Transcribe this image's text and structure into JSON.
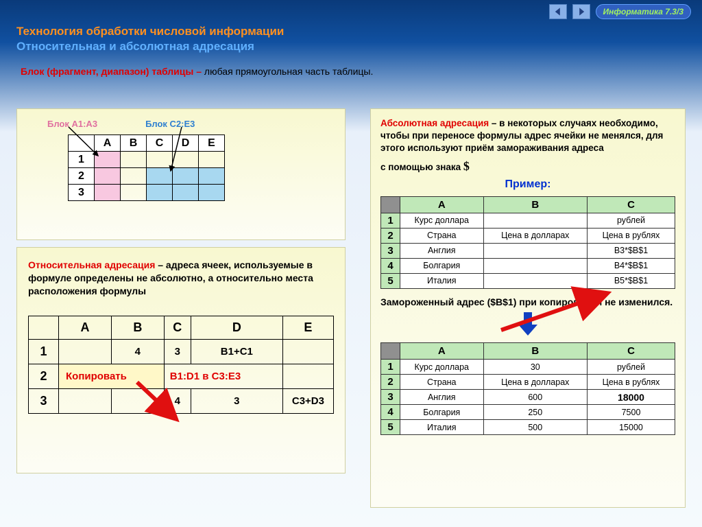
{
  "nav_badge": "Информатика  7.3/3",
  "titles": {
    "t1": "Технология обработки числовой информации",
    "t2": "Относительная и абсолютная адресация"
  },
  "block_def": {
    "term": "Блок (фрагмент, диапазон) таблицы –",
    "rest": " любая прямоугольная часть таблицы."
  },
  "left_top": {
    "label_a": "Блок A1:A3",
    "label_c": "Блок C2:E3",
    "cols": [
      "A",
      "B",
      "C",
      "D",
      "E"
    ],
    "rows": [
      "1",
      "2",
      "3"
    ],
    "pink_cells": [
      [
        0,
        0
      ],
      [
        1,
        0
      ],
      [
        2,
        0
      ]
    ],
    "blue_cells": [
      [
        1,
        2
      ],
      [
        1,
        3
      ],
      [
        1,
        4
      ],
      [
        2,
        2
      ],
      [
        2,
        3
      ],
      [
        2,
        4
      ]
    ]
  },
  "relative_para": {
    "term": "Относительная адресация",
    "rest": " – адреса ячеек, используемые в формуле определены не абсолютно, а относительно места расположения формулы"
  },
  "grid2": {
    "cols": [
      "A",
      "B",
      "C",
      "D",
      "E"
    ],
    "rows": [
      "1",
      "2",
      "3"
    ],
    "data": {
      "r1": [
        "",
        "4",
        "3",
        "B1+C1",
        ""
      ],
      "r2_merge": "Копировать",
      "r2_after": "B1:D1 в C3:E3",
      "r3": [
        "",
        "",
        "4",
        "3",
        "C3+D3"
      ]
    }
  },
  "absolute_para": {
    "term": "Абсолютная адресация",
    "rest": " – в некоторых случаях необходимо, чтобы при переносе формулы адрес ячейки не менялся, для этого используют приём замораживания адреса",
    "tail_pre": "c помощью знака ",
    "tail_sym": "$"
  },
  "example_label": "Пример:",
  "ex_table1": {
    "cols": [
      "A",
      "B",
      "C"
    ],
    "rows": [
      [
        "1",
        "Курс доллара",
        "",
        "рублей"
      ],
      [
        "2",
        "Страна",
        "Цена в долларах",
        "Цена в рублях"
      ],
      [
        "3",
        "Англия",
        "",
        "B3*$B$1"
      ],
      [
        "4",
        "Болгария",
        "",
        "B4*$B$1"
      ],
      [
        "5",
        "Италия",
        "",
        "B5*$B$1"
      ]
    ]
  },
  "frozen_note": "Замороженный адрес ($B$1) при копировании не изменился.",
  "ex_table2": {
    "cols": [
      "A",
      "B",
      "C"
    ],
    "rows": [
      [
        "1",
        "Курс доллара",
        "30",
        "рублей"
      ],
      [
        "2",
        "Страна",
        "Цена в долларах",
        "Цена в рублях"
      ],
      [
        "3",
        "Англия",
        "600",
        "18000"
      ],
      [
        "4",
        "Болгария",
        "250",
        "7500"
      ],
      [
        "5",
        "Италия",
        "500",
        "15000"
      ]
    ]
  },
  "colors": {
    "pink": "#f8c8e0",
    "blue": "#a8d8f0",
    "green_header": "#c0e8b8",
    "red_arrow": "#e01010",
    "blue_arrow": "#1040c0"
  }
}
